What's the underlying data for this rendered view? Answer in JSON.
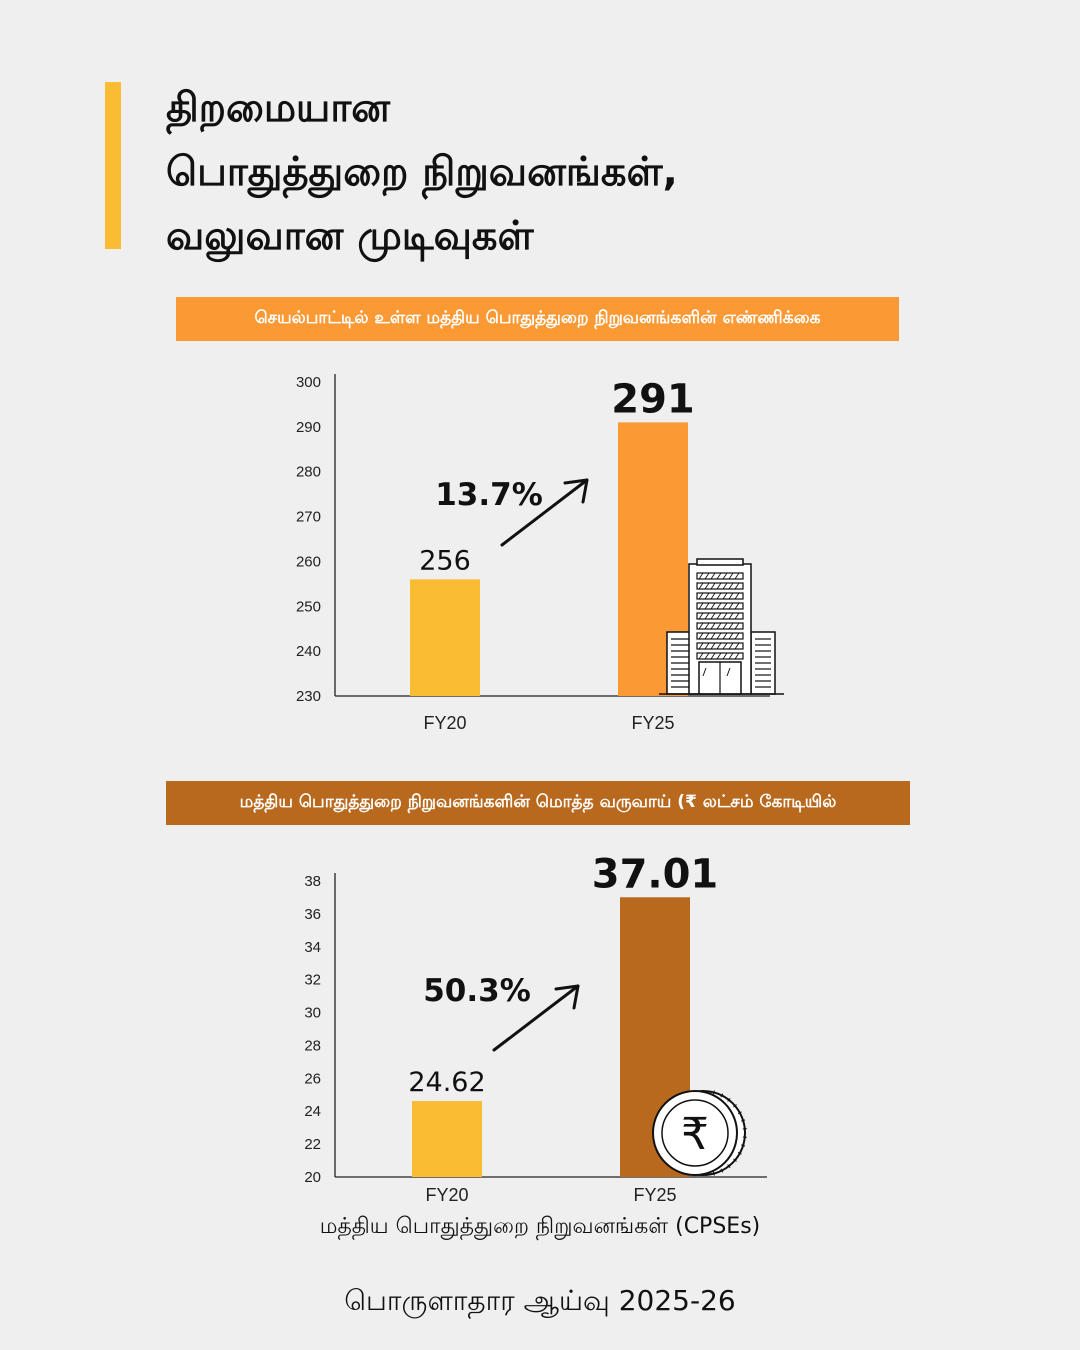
{
  "title": {
    "lines": [
      "திறமையான",
      "பொதுத்துறை நிறுவனங்கள்,",
      "வலுவான முடிவுகள்"
    ]
  },
  "colors": {
    "accent": "#f9bc33",
    "fy20_bar": "#f9bc33",
    "chart1_bar": "#fb9935",
    "chart2_bar": "#b9691e",
    "background": "#efefef"
  },
  "chart_data": [
    {
      "type": "bar",
      "title": "செயல்பாட்டில் உள்ள மத்திய பொதுத்துறை நிறுவனங்களின் எண்ணிக்கை",
      "categories": [
        "FY20",
        "FY25"
      ],
      "values": [
        256,
        291
      ],
      "value_labels": [
        "256",
        "291"
      ],
      "ylim": [
        230,
        300
      ],
      "yticks": [
        230,
        240,
        250,
        260,
        270,
        280,
        290,
        300
      ],
      "growth_label": "13.7%",
      "icon": "office-building-icon",
      "grid": false
    },
    {
      "type": "bar",
      "title": "மத்திய பொதுத்துறை நிறுவனங்களின் மொத்த வருவாய் (₹ லட்சம் கோடியில்",
      "categories": [
        "FY20",
        "FY25"
      ],
      "values": [
        24.62,
        37.01
      ],
      "value_labels": [
        "24.62",
        "37.01"
      ],
      "ylim": [
        20,
        38
      ],
      "yticks": [
        20,
        22,
        24,
        26,
        28,
        30,
        32,
        34,
        36,
        38
      ],
      "growth_label": "50.3%",
      "icon": "rupee-coin-icon",
      "grid": false
    }
  ],
  "subtitle": "மத்திய பொதுத்துறை நிறுவனங்கள் (CPSEs)",
  "footer": "பொருளாதார ஆய்வு 2025-26"
}
